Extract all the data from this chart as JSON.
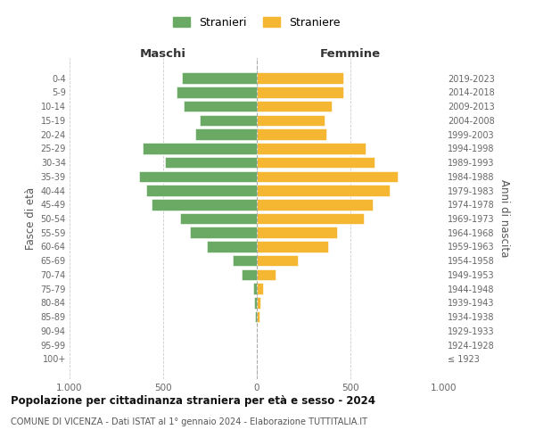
{
  "age_groups": [
    "100+",
    "95-99",
    "90-94",
    "85-89",
    "80-84",
    "75-79",
    "70-74",
    "65-69",
    "60-64",
    "55-59",
    "50-54",
    "45-49",
    "40-44",
    "35-39",
    "30-34",
    "25-29",
    "20-24",
    "15-19",
    "10-14",
    "5-9",
    "0-4"
  ],
  "birth_years": [
    "≤ 1923",
    "1924-1928",
    "1929-1933",
    "1934-1938",
    "1939-1943",
    "1944-1948",
    "1949-1953",
    "1954-1958",
    "1959-1963",
    "1964-1968",
    "1969-1973",
    "1974-1978",
    "1979-1983",
    "1984-1988",
    "1989-1993",
    "1994-1998",
    "1999-2003",
    "2004-2008",
    "2009-2013",
    "2014-2018",
    "2019-2023"
  ],
  "maschi": [
    0,
    0,
    0,
    10,
    15,
    20,
    80,
    130,
    265,
    355,
    410,
    560,
    590,
    630,
    490,
    610,
    330,
    305,
    390,
    430,
    400
  ],
  "femmine": [
    0,
    0,
    0,
    15,
    20,
    35,
    100,
    220,
    380,
    430,
    570,
    620,
    710,
    750,
    630,
    580,
    370,
    360,
    400,
    460,
    460
  ],
  "color_maschi": "#6aaa64",
  "color_femmine": "#f5b731",
  "title": "Popolazione per cittadinanza straniera per età e sesso - 2024",
  "subtitle": "COMUNE DI VICENZA - Dati ISTAT al 1° gennaio 2024 - Elaborazione TUTTITALIA.IT",
  "ylabel_left": "Fasce di età",
  "ylabel_right": "Anni di nascita",
  "xlabel_left": "Maschi",
  "xlabel_right": "Femmine",
  "legend_maschi": "Stranieri",
  "legend_femmine": "Straniere",
  "xlim": 1000,
  "background_color": "#ffffff",
  "grid_color": "#cccccc"
}
